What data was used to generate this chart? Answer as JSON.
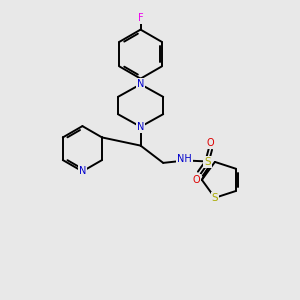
{
  "background_color": "#e8e8e8",
  "bond_color": "#000000",
  "nitrogen_color": "#0000cc",
  "oxygen_color": "#dd0000",
  "sulfur_color": "#aaaa00",
  "fluorine_color": "#ee00ee",
  "line_width": 1.4,
  "figsize": [
    3.0,
    3.0
  ],
  "dpi": 100,
  "xlim": [
    0.5,
    8.5
  ],
  "ylim": [
    1.0,
    10.5
  ]
}
